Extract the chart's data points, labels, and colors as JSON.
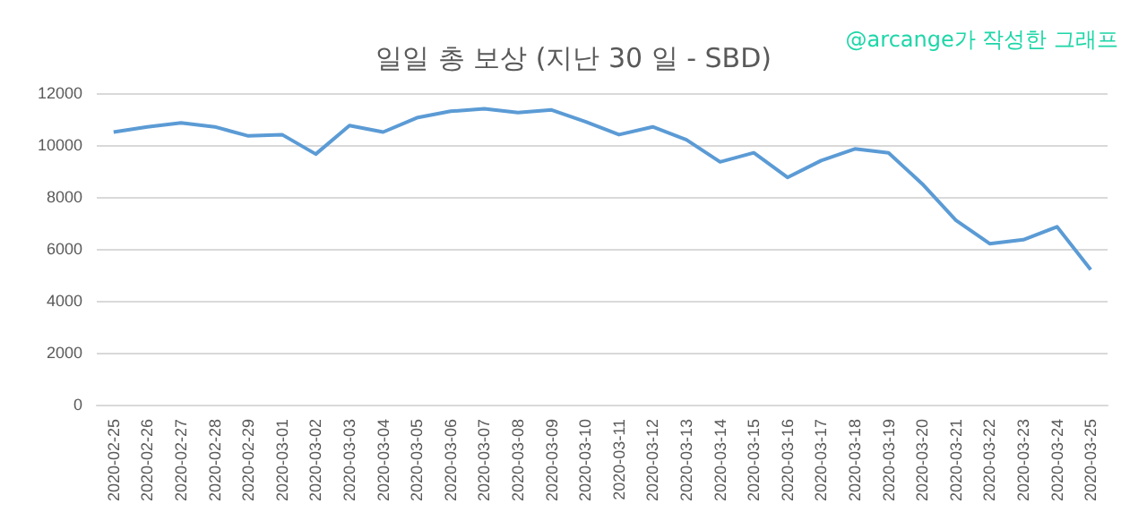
{
  "chart_data": {
    "type": "line",
    "title": "일일 총 보상 (지난 30 일 - SBD)",
    "annotations": [
      "@arcange가 작성한 그래프"
    ],
    "categories": [
      "2020-02-25",
      "2020-02-26",
      "2020-02-27",
      "2020-02-28",
      "2020-02-29",
      "2020-03-01",
      "2020-03-02",
      "2020-03-03",
      "2020-03-04",
      "2020-03-05",
      "2020-03-06",
      "2020-03-07",
      "2020-03-08",
      "2020-03-09",
      "2020-03-10",
      "2020-03-11",
      "2020-03-12",
      "2020-03-13",
      "2020-03-14",
      "2020-03-15",
      "2020-03-16",
      "2020-03-17",
      "2020-03-18",
      "2020-03-19",
      "2020-03-20",
      "2020-03-21",
      "2020-03-22",
      "2020-03-23",
      "2020-03-24",
      "2020-03-25"
    ],
    "series": [
      {
        "color": "#5b9bd5",
        "values": [
          10500,
          10700,
          10850,
          10700,
          10350,
          10400,
          9650,
          10750,
          10500,
          11050,
          11300,
          11400,
          11250,
          11350,
          10900,
          10400,
          10700,
          10200,
          9350,
          9700,
          8750,
          9400,
          9850,
          9700,
          8500,
          7100,
          6200,
          6350,
          6850,
          5200
        ]
      }
    ],
    "ylim": [
      0,
      12000
    ],
    "yticks": [
      0,
      2000,
      4000,
      6000,
      8000,
      10000,
      12000
    ],
    "grid": "y",
    "marker": "none",
    "line_style": "solid"
  }
}
